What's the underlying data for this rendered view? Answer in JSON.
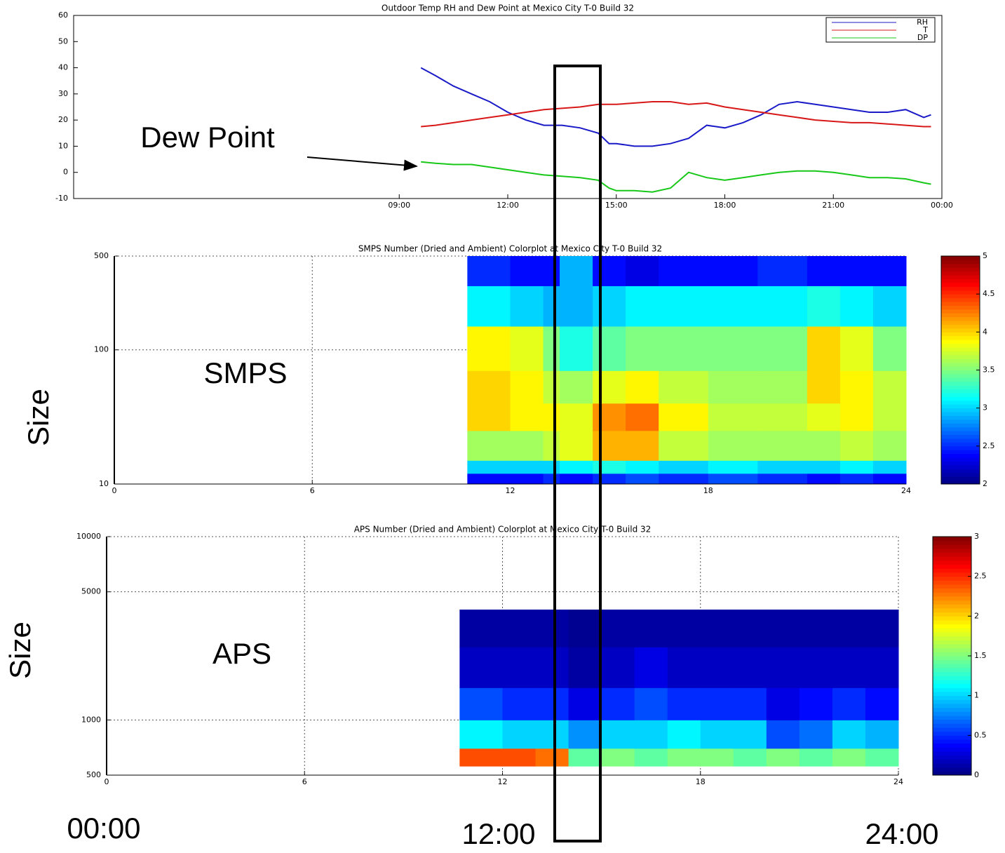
{
  "chart_data": [
    {
      "type": "line",
      "title": "Outdoor Temp RH and Dew Point at Mexico City T-0 Build 32",
      "x": [
        9.6,
        10,
        10.5,
        11,
        11.5,
        12,
        12.5,
        13,
        13.5,
        14,
        14.5,
        14.8,
        15,
        15.5,
        16,
        16.5,
        17,
        17.5,
        18,
        18.5,
        19,
        19.5,
        20,
        20.5,
        21,
        21.5,
        22,
        22.5,
        23,
        23.5,
        23.7
      ],
      "series": [
        {
          "name": "RH",
          "color": "#1a1ac8",
          "values": [
            40,
            37,
            33,
            30,
            27,
            23,
            20,
            18,
            18,
            17,
            15,
            11,
            11,
            10,
            10,
            11,
            13,
            18,
            17,
            19,
            22,
            26,
            27,
            26,
            25,
            24,
            23,
            23,
            24,
            21,
            22
          ]
        },
        {
          "name": "T",
          "color": "#d81818",
          "values": [
            17.5,
            18,
            19,
            20,
            21,
            22,
            23,
            24,
            24.5,
            25,
            26,
            26,
            26,
            26.5,
            27,
            27,
            26,
            26.5,
            25,
            24,
            23,
            22,
            21,
            20,
            19.5,
            19,
            19,
            18.5,
            18,
            17.5,
            17.5
          ]
        },
        {
          "name": "DP",
          "color": "#18c818",
          "values": [
            4,
            3.5,
            3,
            3,
            2,
            1,
            0,
            -1,
            -1.5,
            -2,
            -3,
            -6,
            -7,
            -7,
            -7.5,
            -6,
            0,
            -2,
            -3,
            -2,
            -1,
            0,
            0.5,
            0.5,
            0,
            -1,
            -2,
            -2,
            -2.5,
            -4,
            -4.5
          ]
        }
      ],
      "xlim": [
        0,
        24
      ],
      "xticks": [
        {
          "value": 9,
          "label": "09:00"
        },
        {
          "value": 12,
          "label": "12:00"
        },
        {
          "value": 15,
          "label": "15:00"
        },
        {
          "value": 18,
          "label": "18:00"
        },
        {
          "value": 21,
          "label": "21:00"
        },
        {
          "value": 24,
          "label": "00:00"
        }
      ],
      "ylim": [
        -10,
        60
      ],
      "yticks": [
        -10,
        0,
        10,
        20,
        30,
        40,
        50,
        60
      ],
      "legend": "upper right",
      "annotation": "Dew Point"
    },
    {
      "type": "heatmap",
      "title": "SMPS Number (Dried and Ambient) Colorplot at Mexico City T-0 Build 32",
      "label": "SMPS",
      "y_label": "Size",
      "x_edges": [
        10.7,
        12,
        13,
        13.5,
        14.5,
        15.5,
        16.5,
        18,
        19.5,
        21,
        22,
        23,
        24
      ],
      "y_edges": [
        10,
        12,
        15,
        25,
        40,
        70,
        150,
        300,
        500
      ],
      "values": [
        [
          2.4,
          2.4,
          2.5,
          2.4,
          2.5,
          2.6,
          2.5,
          2.6,
          2.5,
          2.4,
          2.5,
          2.4
        ],
        [
          3.0,
          3.0,
          3.0,
          3.1,
          3.2,
          3.1,
          3.0,
          3.1,
          3.0,
          3.0,
          3.1,
          3.0
        ],
        [
          3.6,
          3.6,
          3.7,
          3.8,
          4.1,
          4.1,
          3.7,
          3.6,
          3.6,
          3.6,
          3.7,
          3.6
        ],
        [
          4.0,
          3.9,
          3.9,
          3.8,
          4.2,
          4.3,
          3.9,
          3.7,
          3.7,
          3.8,
          3.9,
          3.7
        ],
        [
          4.0,
          3.9,
          3.7,
          3.6,
          3.8,
          3.9,
          3.7,
          3.6,
          3.6,
          4.0,
          3.9,
          3.7
        ],
        [
          3.9,
          3.8,
          3.5,
          3.2,
          3.4,
          3.5,
          3.5,
          3.5,
          3.5,
          4.0,
          3.8,
          3.5
        ],
        [
          3.1,
          3.0,
          2.9,
          2.9,
          3.0,
          3.1,
          3.1,
          3.1,
          3.1,
          3.2,
          3.1,
          3.0
        ],
        [
          2.5,
          2.4,
          2.4,
          2.9,
          2.4,
          2.3,
          2.4,
          2.4,
          2.5,
          2.4,
          2.4,
          2.4
        ]
      ],
      "xlim": [
        0,
        24
      ],
      "xticks": [
        0,
        6,
        12,
        18,
        24
      ],
      "ylim": [
        10,
        500
      ],
      "yticks": [
        10,
        100,
        500
      ],
      "ylog": true,
      "grid": true,
      "colorbar": {
        "colormap": "jet",
        "lim": [
          2,
          5
        ],
        "ticks": [
          2,
          2.5,
          3,
          3.5,
          4,
          4.5,
          5
        ]
      }
    },
    {
      "type": "heatmap",
      "title": "APS Number (Dried and Ambient) Colorplot at Mexico City T-0 Build 32",
      "label": "APS",
      "y_label": "Size",
      "x_edges": [
        10.7,
        12,
        13,
        14,
        15,
        16,
        17,
        18,
        19,
        20,
        21,
        22,
        23,
        24
      ],
      "y_edges": [
        560,
        700,
        1000,
        1500,
        2500,
        4000
      ],
      "values": [
        [
          2.4,
          2.4,
          2.3,
          1.4,
          1.5,
          1.4,
          1.5,
          1.5,
          1.4,
          1.5,
          1.4,
          1.5,
          1.4
        ],
        [
          1.1,
          1.0,
          1.0,
          0.8,
          1.0,
          1.0,
          1.1,
          1.0,
          1.0,
          0.6,
          0.7,
          1.0,
          0.9
        ],
        [
          0.6,
          0.5,
          0.5,
          0.3,
          0.5,
          0.6,
          0.5,
          0.5,
          0.5,
          0.3,
          0.4,
          0.5,
          0.4
        ],
        [
          0.2,
          0.2,
          0.2,
          0.1,
          0.2,
          0.3,
          0.2,
          0.2,
          0.2,
          0.2,
          0.2,
          0.2,
          0.2
        ],
        [
          0.1,
          0.1,
          0.1,
          0.05,
          0.1,
          0.1,
          0.1,
          0.1,
          0.1,
          0.1,
          0.1,
          0.1,
          0.1
        ]
      ],
      "xlim": [
        0,
        24
      ],
      "xticks": [
        0,
        6,
        12,
        18,
        24
      ],
      "ylim": [
        500,
        10000
      ],
      "yticks": [
        500,
        1000,
        5000,
        10000
      ],
      "ylog": true,
      "grid": true,
      "colorbar": {
        "colormap": "jet",
        "lim": [
          0,
          3
        ],
        "ticks": [
          0,
          0.5,
          1,
          1.5,
          2,
          2.5,
          3
        ]
      }
    }
  ],
  "footer_labels": [
    "00:00",
    "12:00",
    "24:00"
  ]
}
